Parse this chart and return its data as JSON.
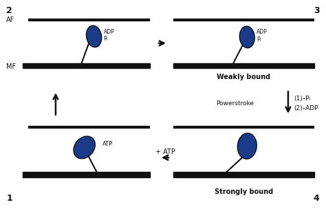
{
  "bg_color": "#ffffff",
  "filament_color": "#111111",
  "head_color": "#1a3a8a",
  "head_edge_color": "#111111",
  "arrow_color": "#111111",
  "text_color": "#111111",
  "af_label": "AF",
  "mf_label": "MF",
  "weakly_bound": "Weakly bound",
  "strongly_bound": "Strongly bound",
  "powerstroke": "Powerstroke",
  "step1": "(1)–Pᵢ",
  "step2": "(2)–ADP",
  "atp_label": "+ ATP",
  "panels": [
    "2",
    "3",
    "1",
    "4"
  ]
}
